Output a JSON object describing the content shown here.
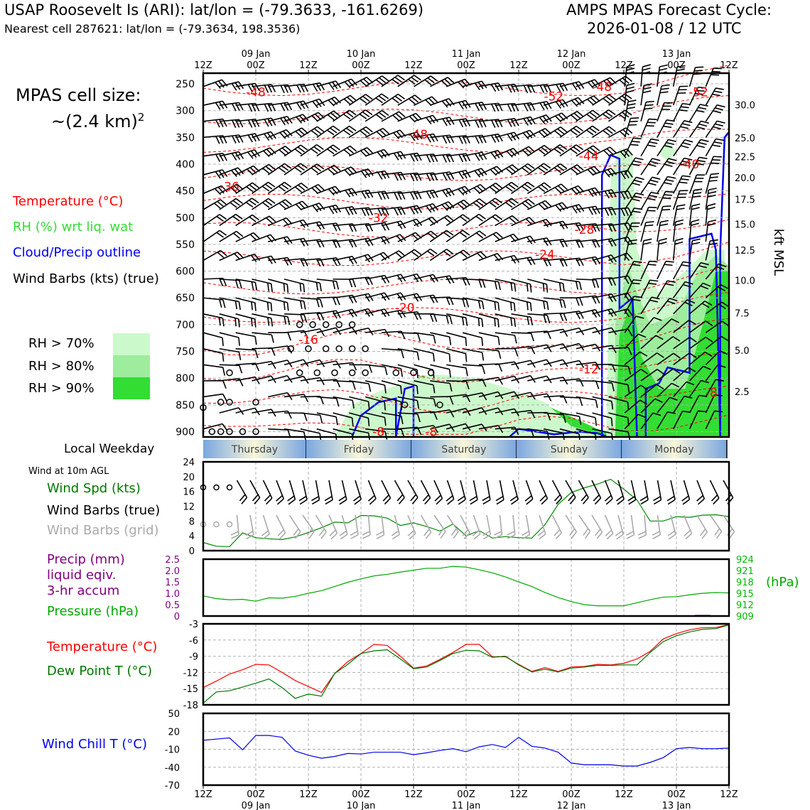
{
  "header": {
    "title_left": "USAP Roosevelt Is (ARI): lat/lon = (-79.3633, -161.6269)",
    "subtitle_left": "Nearest cell 287621: lat/lon = (-79.3634, 198.3536)",
    "title_right_1": "AMPS MPAS Forecast Cycle:",
    "title_right_2": "2026-01-08 / 12 UTC"
  },
  "cell_size": {
    "line1": "MPAS cell size:",
    "line2": "~(2.4 km)",
    "sup": "2"
  },
  "legend_main": {
    "temperature": "Temperature (°C)",
    "rh": "RH (%) wrt liq. wat",
    "cloud": "Cloud/Precip outline",
    "wind": "Wind Barbs (kts) (true)"
  },
  "rh_legend": [
    {
      "label": "RH > 70%",
      "color": "#ccf9cc"
    },
    {
      "label": "RH > 80%",
      "color": "#9ded9d"
    },
    {
      "label": "RH > 90%",
      "color": "#33dd33"
    }
  ],
  "colors": {
    "temp": "#ff0000",
    "rh": "#33dd33",
    "cloud": "#0000ee",
    "precip": "#800080",
    "pressure": "#00aa00",
    "dew": "#007700",
    "chill": "#0000ee",
    "grey": "#aaaaaa"
  },
  "local_weekday": {
    "label": "Local Weekday",
    "days": [
      "Thursday",
      "Friday",
      "Saturday",
      "Sunday",
      "Monday"
    ]
  },
  "wind10_title": "Wind at 10m AGL",
  "legend_wind10": {
    "speed": "Wind Spd (kts)",
    "barbs_true": "Wind Barbs (true)",
    "barbs_grid": "Wind Barbs (grid)"
  },
  "legend_precip": {
    "line1": "Precip (mm)",
    "line2": "liquid eqiv.",
    "line3": "3-hr accum",
    "pressure": "Pressure (hPa)",
    "hpa_unit": "(hPa)"
  },
  "legend_temp": {
    "temp": "Temperature (°C)",
    "dew": "Dew Point T (°C)"
  },
  "legend_chill": "Wind Chill T (°C)",
  "time_axis": {
    "ticks": [
      {
        "t": 0,
        "label": "12Z",
        "date": ""
      },
      {
        "t": 12,
        "label": "00Z",
        "date": "09 Jan"
      },
      {
        "t": 24,
        "label": "12Z",
        "date": ""
      },
      {
        "t": 36,
        "label": "00Z",
        "date": "10 Jan"
      },
      {
        "t": 48,
        "label": "12Z",
        "date": ""
      },
      {
        "t": 60,
        "label": "00Z",
        "date": "11 Jan"
      },
      {
        "t": 72,
        "label": "12Z",
        "date": ""
      },
      {
        "t": 84,
        "label": "00Z",
        "date": "12 Jan"
      },
      {
        "t": 96,
        "label": "12Z",
        "date": ""
      },
      {
        "t": 108,
        "label": "00Z",
        "date": "13 Jan"
      },
      {
        "t": 120,
        "label": "12Z",
        "date": ""
      }
    ]
  },
  "chart_data": [
    {
      "type": "contour",
      "name": "Time-height cross section",
      "x_unit": "hours from 2026-01-08 12 UTC",
      "xlim": [
        0,
        120
      ],
      "ylim_hpa": [
        910,
        230
      ],
      "pressure_ticks": [
        "250",
        "300",
        "350",
        "400",
        "450",
        "500",
        "550",
        "600",
        "650",
        "700",
        "750",
        "800",
        "850",
        "900"
      ],
      "height_ticks": [
        "30.0",
        "25.0",
        "22.5",
        "20.0",
        "17.5",
        "15.0",
        "12.5",
        "10.0",
        "7.5",
        "5.0",
        "2.5"
      ],
      "height_ticks_p": [
        289,
        351,
        386,
        425,
        466,
        512,
        561,
        617,
        678,
        748,
        825,
        907
      ],
      "ylabel_right": "kft MSL",
      "temp_labels": [
        {
          "t": 12,
          "p": 265,
          "v": "-48"
        },
        {
          "t": 80,
          "p": 273,
          "v": "-52"
        },
        {
          "t": 91,
          "p": 255,
          "v": "-48"
        },
        {
          "t": 113,
          "p": 265,
          "v": "-52"
        },
        {
          "t": 49,
          "p": 344,
          "v": "-48"
        },
        {
          "t": 88,
          "p": 385,
          "v": "-44"
        },
        {
          "t": 111,
          "p": 400,
          "v": "-40"
        },
        {
          "t": 6,
          "p": 442,
          "v": "-36"
        },
        {
          "t": 40,
          "p": 500,
          "v": "-32"
        },
        {
          "t": 87,
          "p": 522,
          "v": "-28"
        },
        {
          "t": 78,
          "p": 569,
          "v": "-24"
        },
        {
          "t": 46,
          "p": 668,
          "v": "-20"
        },
        {
          "t": 24,
          "p": 728,
          "v": "-16"
        },
        {
          "t": 88,
          "p": 783,
          "v": "-12"
        },
        {
          "t": 116,
          "p": 827,
          "v": "-8"
        },
        {
          "t": 40,
          "p": 900,
          "v": "-8"
        },
        {
          "t": 52,
          "p": 900,
          "v": "-8"
        }
      ]
    },
    {
      "type": "line",
      "name": "10m wind speed",
      "ylim": [
        0,
        24
      ],
      "yticks": [
        "0",
        "4",
        "8",
        "12",
        "16",
        "20",
        "24"
      ],
      "x": [
        0,
        3,
        6,
        9,
        12,
        15,
        18,
        21,
        24,
        27,
        30,
        33,
        36,
        39,
        42,
        45,
        48,
        51,
        54,
        57,
        60,
        63,
        66,
        69,
        72,
        75,
        78,
        81,
        84,
        87,
        90,
        93,
        96,
        99,
        102,
        105,
        108,
        111,
        114,
        117,
        120
      ],
      "values": [
        2.2,
        1.2,
        1.1,
        4.8,
        3.5,
        3.2,
        3.0,
        3.7,
        4.9,
        6.2,
        7.7,
        7.5,
        9.5,
        9.4,
        8.8,
        6.8,
        7.5,
        6.5,
        5.3,
        7.2,
        4.0,
        5.4,
        3.4,
        3.8,
        3.5,
        3.4,
        7.0,
        12.5,
        15.7,
        17.0,
        18.0,
        19.3,
        16.6,
        13.7,
        8.0,
        8.0,
        9.2,
        9.0,
        9.6,
        9.7,
        9.2
      ]
    },
    {
      "type": "line",
      "name": "Precip and pressure",
      "precip_ylim": [
        0,
        2.5
      ],
      "precip_ticks": [
        "0",
        "0.5",
        "1.0",
        "1.5",
        "2.0",
        "2.5"
      ],
      "pressure_ylim": [
        909,
        924
      ],
      "pressure_ticks": [
        "909",
        "912",
        "915",
        "918",
        "921",
        "924"
      ],
      "precip_bars": [
        {
          "t": 114,
          "v": 0.05
        }
      ],
      "x": [
        0,
        3,
        6,
        9,
        12,
        15,
        18,
        21,
        24,
        27,
        30,
        33,
        36,
        39,
        42,
        45,
        48,
        51,
        54,
        57,
        60,
        63,
        66,
        69,
        72,
        75,
        78,
        81,
        84,
        87,
        90,
        93,
        96,
        99,
        102,
        105,
        108,
        111,
        114,
        117,
        120
      ],
      "pressure": [
        914.3,
        913.6,
        913.3,
        913.4,
        912.9,
        913.8,
        913.7,
        914.2,
        915.0,
        915.7,
        916.8,
        917.9,
        918.8,
        919.6,
        920.0,
        920.6,
        921.1,
        921.6,
        921.6,
        922.1,
        921.9,
        921.2,
        920.4,
        919.3,
        918.0,
        916.8,
        915.2,
        913.9,
        912.8,
        912.0,
        911.7,
        911.7,
        911.7,
        912.5,
        913.3,
        914.0,
        914.1,
        914.6,
        915.0,
        915.2,
        915.1
      ]
    },
    {
      "type": "line",
      "name": "Temperature and dew point",
      "ylim": [
        -18,
        -3
      ],
      "yticks": [
        "-18",
        "-15",
        "-12",
        "-9",
        "-6",
        "-3"
      ],
      "x": [
        0,
        3,
        6,
        9,
        12,
        15,
        18,
        21,
        24,
        27,
        30,
        33,
        36,
        39,
        42,
        45,
        48,
        51,
        54,
        57,
        60,
        63,
        66,
        69,
        72,
        75,
        78,
        81,
        84,
        87,
        90,
        93,
        96,
        99,
        102,
        105,
        108,
        111,
        114,
        117,
        120
      ],
      "series": [
        {
          "name": "Temperature",
          "values": [
            -14.8,
            -13.6,
            -12.3,
            -11.5,
            -10.5,
            -10.6,
            -12.0,
            -13.5,
            -14.6,
            -15.7,
            -12.2,
            -10.0,
            -8.5,
            -6.8,
            -7.0,
            -9.0,
            -11.2,
            -10.8,
            -9.6,
            -8.3,
            -6.8,
            -6.8,
            -9.1,
            -9.1,
            -10.5,
            -11.8,
            -11.1,
            -11.8,
            -11.0,
            -10.9,
            -10.5,
            -10.6,
            -10.3,
            -9.5,
            -8.1,
            -5.8,
            -4.8,
            -4.1,
            -3.7,
            -3.7,
            -3.1
          ]
        },
        {
          "name": "Dew Point",
          "values": [
            -17.7,
            -15.6,
            -15.4,
            -14.7,
            -14.0,
            -13.2,
            -14.8,
            -16.8,
            -16.0,
            -16.4,
            -12.2,
            -10.5,
            -8.5,
            -8.0,
            -7.8,
            -9.5,
            -11.3,
            -11.0,
            -9.8,
            -8.5,
            -7.9,
            -8.0,
            -9.2,
            -9.0,
            -10.6,
            -11.9,
            -11.4,
            -11.9,
            -11.2,
            -11.0,
            -10.7,
            -10.7,
            -10.6,
            -10.6,
            -8.3,
            -6.3,
            -5.2,
            -4.5,
            -4.0,
            -3.9,
            -3.2
          ]
        }
      ]
    },
    {
      "type": "line",
      "name": "Wind chill temperature",
      "ylim": [
        -70,
        50
      ],
      "yticks": [
        "-70",
        "-40",
        "-10",
        "20",
        "50"
      ],
      "x": [
        0,
        3,
        6,
        9,
        12,
        15,
        18,
        21,
        24,
        27,
        30,
        33,
        36,
        39,
        42,
        45,
        48,
        51,
        54,
        57,
        60,
        63,
        66,
        69,
        72,
        75,
        78,
        81,
        84,
        87,
        90,
        93,
        96,
        99,
        102,
        105,
        108,
        111,
        114,
        117,
        120
      ],
      "values": [
        5,
        7,
        9,
        -11,
        13,
        13,
        10,
        -13,
        -20,
        -25,
        -22,
        -17,
        -18,
        -15,
        -15,
        -15,
        -19,
        -16,
        -12,
        -9,
        -14,
        -6,
        -2,
        -7,
        10,
        -5,
        -8,
        -15,
        -33,
        -36,
        -36,
        -36,
        -38,
        -38,
        -32,
        -24,
        -9,
        -7,
        -9,
        -9,
        -8
      ]
    }
  ]
}
